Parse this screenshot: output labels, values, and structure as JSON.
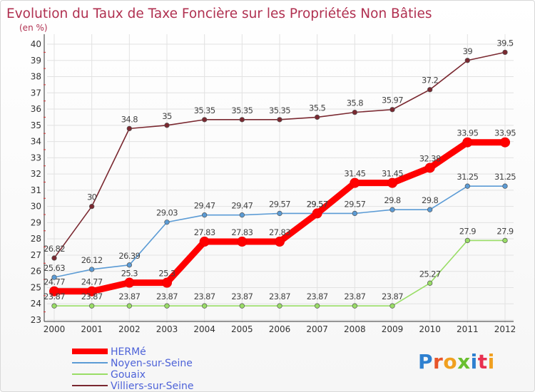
{
  "chart_data": {
    "type": "line",
    "title": "Evolution du Taux de Taxe Foncière sur les Propriétés Non Bâties",
    "subtitle": "(en %)",
    "x": [
      "2000",
      "2001",
      "2002",
      "2003",
      "2004",
      "2005",
      "2006",
      "2007",
      "2008",
      "2009",
      "2010",
      "2011",
      "2012"
    ],
    "ylim": [
      23,
      40
    ],
    "yticks": [
      23,
      24,
      25,
      26,
      27,
      28,
      29,
      30,
      31,
      32,
      33,
      34,
      35,
      36,
      37,
      38,
      39,
      40
    ],
    "grid": true,
    "legend_position": "bottom-left",
    "series": [
      {
        "name": "HERMé",
        "color": "#ff0000",
        "values": [
          24.77,
          24.77,
          25.3,
          25.3,
          27.83,
          27.83,
          27.83,
          29.57,
          31.45,
          31.45,
          32.38,
          33.95,
          33.95
        ],
        "labels": [
          "24.77",
          "24.77",
          "25.3",
          "25.3",
          "27.83",
          "27.83",
          "27.83",
          "29.57",
          "31.45",
          "31.45",
          "32.38",
          "33.95",
          "33.95"
        ]
      },
      {
        "name": "Noyen-sur-Seine",
        "color": "#5b9bd5",
        "values": [
          25.63,
          26.12,
          26.39,
          29.03,
          29.47,
          29.47,
          29.57,
          29.57,
          29.57,
          29.8,
          29.8,
          31.25,
          31.25
        ],
        "labels": [
          "25.63",
          "26.12",
          "26.39",
          "29.03",
          "29.47",
          "29.47",
          "29.57",
          "29.57",
          "29.57",
          "29.8",
          "29.8",
          "31.25",
          "31.25"
        ]
      },
      {
        "name": "Gouaix",
        "color": "#99dd66",
        "values": [
          23.87,
          23.87,
          23.87,
          23.87,
          23.87,
          23.87,
          23.87,
          23.87,
          23.87,
          23.87,
          25.27,
          27.9,
          27.9
        ],
        "labels": [
          "23.87",
          "23.87",
          "23.87",
          "23.87",
          "23.87",
          "23.87",
          "23.87",
          "23.87",
          "23.87",
          "23.87",
          "25.27",
          "27.9",
          "27.9"
        ]
      },
      {
        "name": "Villiers-sur-Seine",
        "color": "#7a2830",
        "values": [
          26.82,
          30,
          34.8,
          35,
          35.35,
          35.35,
          35.35,
          35.5,
          35.8,
          35.97,
          37.2,
          39,
          39.5
        ],
        "labels": [
          "26.82",
          "30",
          "34.8",
          "35",
          "35.35",
          "35.35",
          "35.35",
          "35.5",
          "35.8",
          "35.97",
          "37.2",
          "39",
          "39.5"
        ]
      }
    ]
  },
  "logo": {
    "text": "Proxiti",
    "colors": [
      "#2e80d0",
      "#e8552a",
      "#f0a020",
      "#6abf30",
      "#2e80d0",
      "#e83050",
      "#f0a020"
    ]
  }
}
